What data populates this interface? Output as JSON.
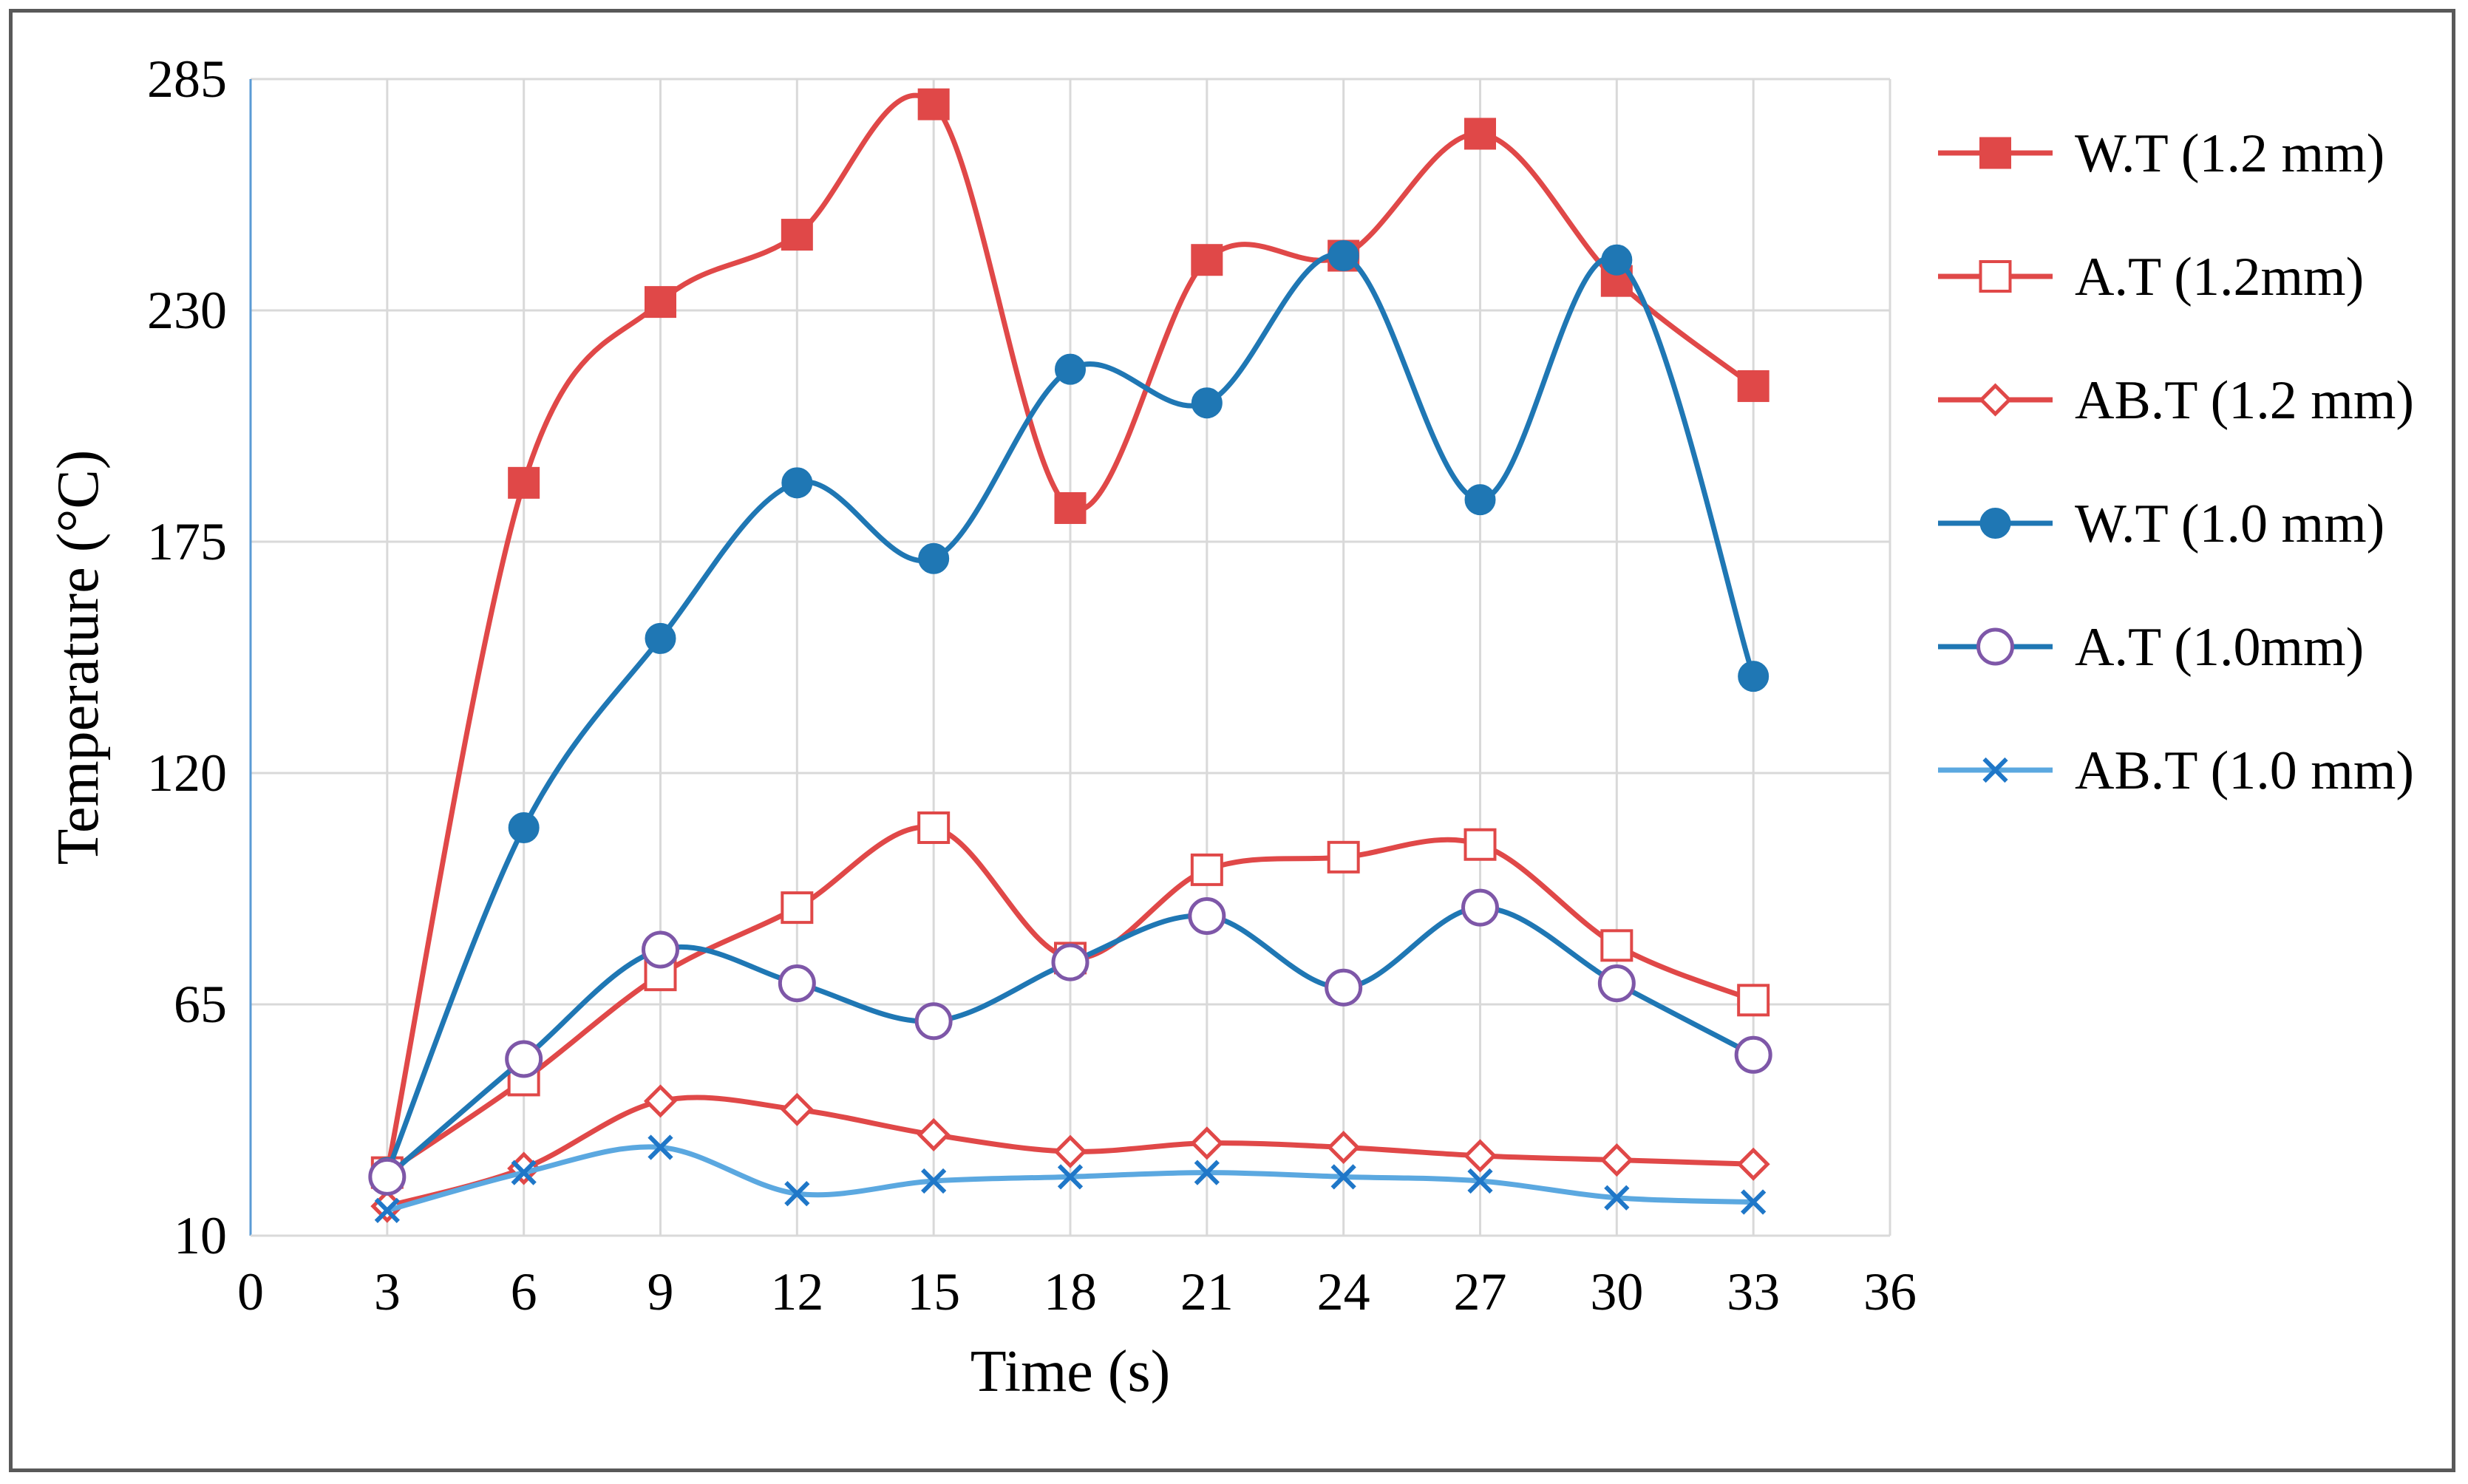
{
  "chart_data": {
    "type": "line",
    "title": "",
    "xlabel": "Time (s)",
    "ylabel": "Temperature (°C)",
    "xlim": [
      0,
      36
    ],
    "ylim": [
      10,
      285
    ],
    "xticks": [
      0,
      3,
      6,
      9,
      12,
      15,
      18,
      21,
      24,
      27,
      30,
      33,
      36
    ],
    "yticks": [
      10,
      65,
      120,
      175,
      230,
      285
    ],
    "grid": true,
    "legend_position": "right",
    "x": [
      3,
      6,
      9,
      12,
      15,
      18,
      21,
      24,
      27,
      30,
      33
    ],
    "series": [
      {
        "name": "W.T (1.2 mm)",
        "color": "#e04848",
        "marker": "square-filled",
        "values": [
          25,
          189,
          232,
          248,
          279,
          183,
          242,
          243,
          272,
          237,
          212
        ]
      },
      {
        "name": "A.T (1.2mm)",
        "color": "#e04848",
        "marker": "square-open",
        "values": [
          25,
          47,
          72,
          88,
          107,
          76,
          97,
          100,
          103,
          79,
          66
        ]
      },
      {
        "name": "AB.T (1.2 mm)",
        "color": "#e04848",
        "marker": "diamond-open",
        "values": [
          17,
          26,
          42,
          40,
          34,
          30,
          32,
          31,
          29,
          28,
          27
        ]
      },
      {
        "name": "W.T (1.0 mm)",
        "color": "#1f77b4",
        "marker": "circle-filled",
        "values": [
          25,
          107,
          152,
          189,
          171,
          216,
          208,
          243,
          185,
          242,
          143
        ]
      },
      {
        "name": "A.T (1.0mm)",
        "color": "#1f77b4",
        "marker": "circle-open",
        "values": [
          24,
          52,
          78,
          70,
          61,
          75,
          86,
          69,
          88,
          70,
          53
        ]
      },
      {
        "name": "AB.T (1.0 mm)",
        "color": "#5ba8e0",
        "marker": "x",
        "values": [
          16,
          25,
          31,
          20,
          23,
          24,
          25,
          24,
          23,
          19,
          18
        ]
      }
    ]
  }
}
